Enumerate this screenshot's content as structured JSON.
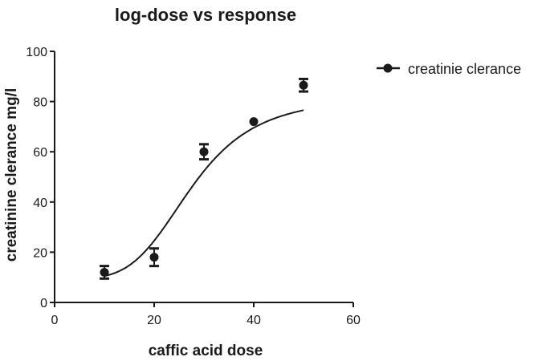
{
  "chart_data": {
    "type": "scatter",
    "title": "log-dose vs response",
    "xlabel": "caffic acid dose",
    "ylabel": "creatinine clerance mg/l",
    "xlim": [
      0,
      60
    ],
    "ylim": [
      0,
      100
    ],
    "xticks": [
      0,
      20,
      40,
      60
    ],
    "yticks": [
      0,
      20,
      40,
      60,
      80,
      100
    ],
    "grid": false,
    "legend_position": "top-right",
    "series": [
      {
        "name": "creatinie clerance",
        "color": "#1a1a1a",
        "points": [
          {
            "x": 10,
            "y": 12,
            "err": 2.5
          },
          {
            "x": 20,
            "y": 18,
            "err": 3.5
          },
          {
            "x": 30,
            "y": 60,
            "err": 3
          },
          {
            "x": 40,
            "y": 72,
            "err": 0
          },
          {
            "x": 50,
            "y": 86.5,
            "err": 2.5
          }
        ],
        "fit_curve": {
          "type": "sigmoid",
          "bottom": 9.5,
          "top": 82,
          "x50": 27.5,
          "slope": 4.2,
          "x_range": [
            10,
            50
          ]
        }
      }
    ]
  }
}
